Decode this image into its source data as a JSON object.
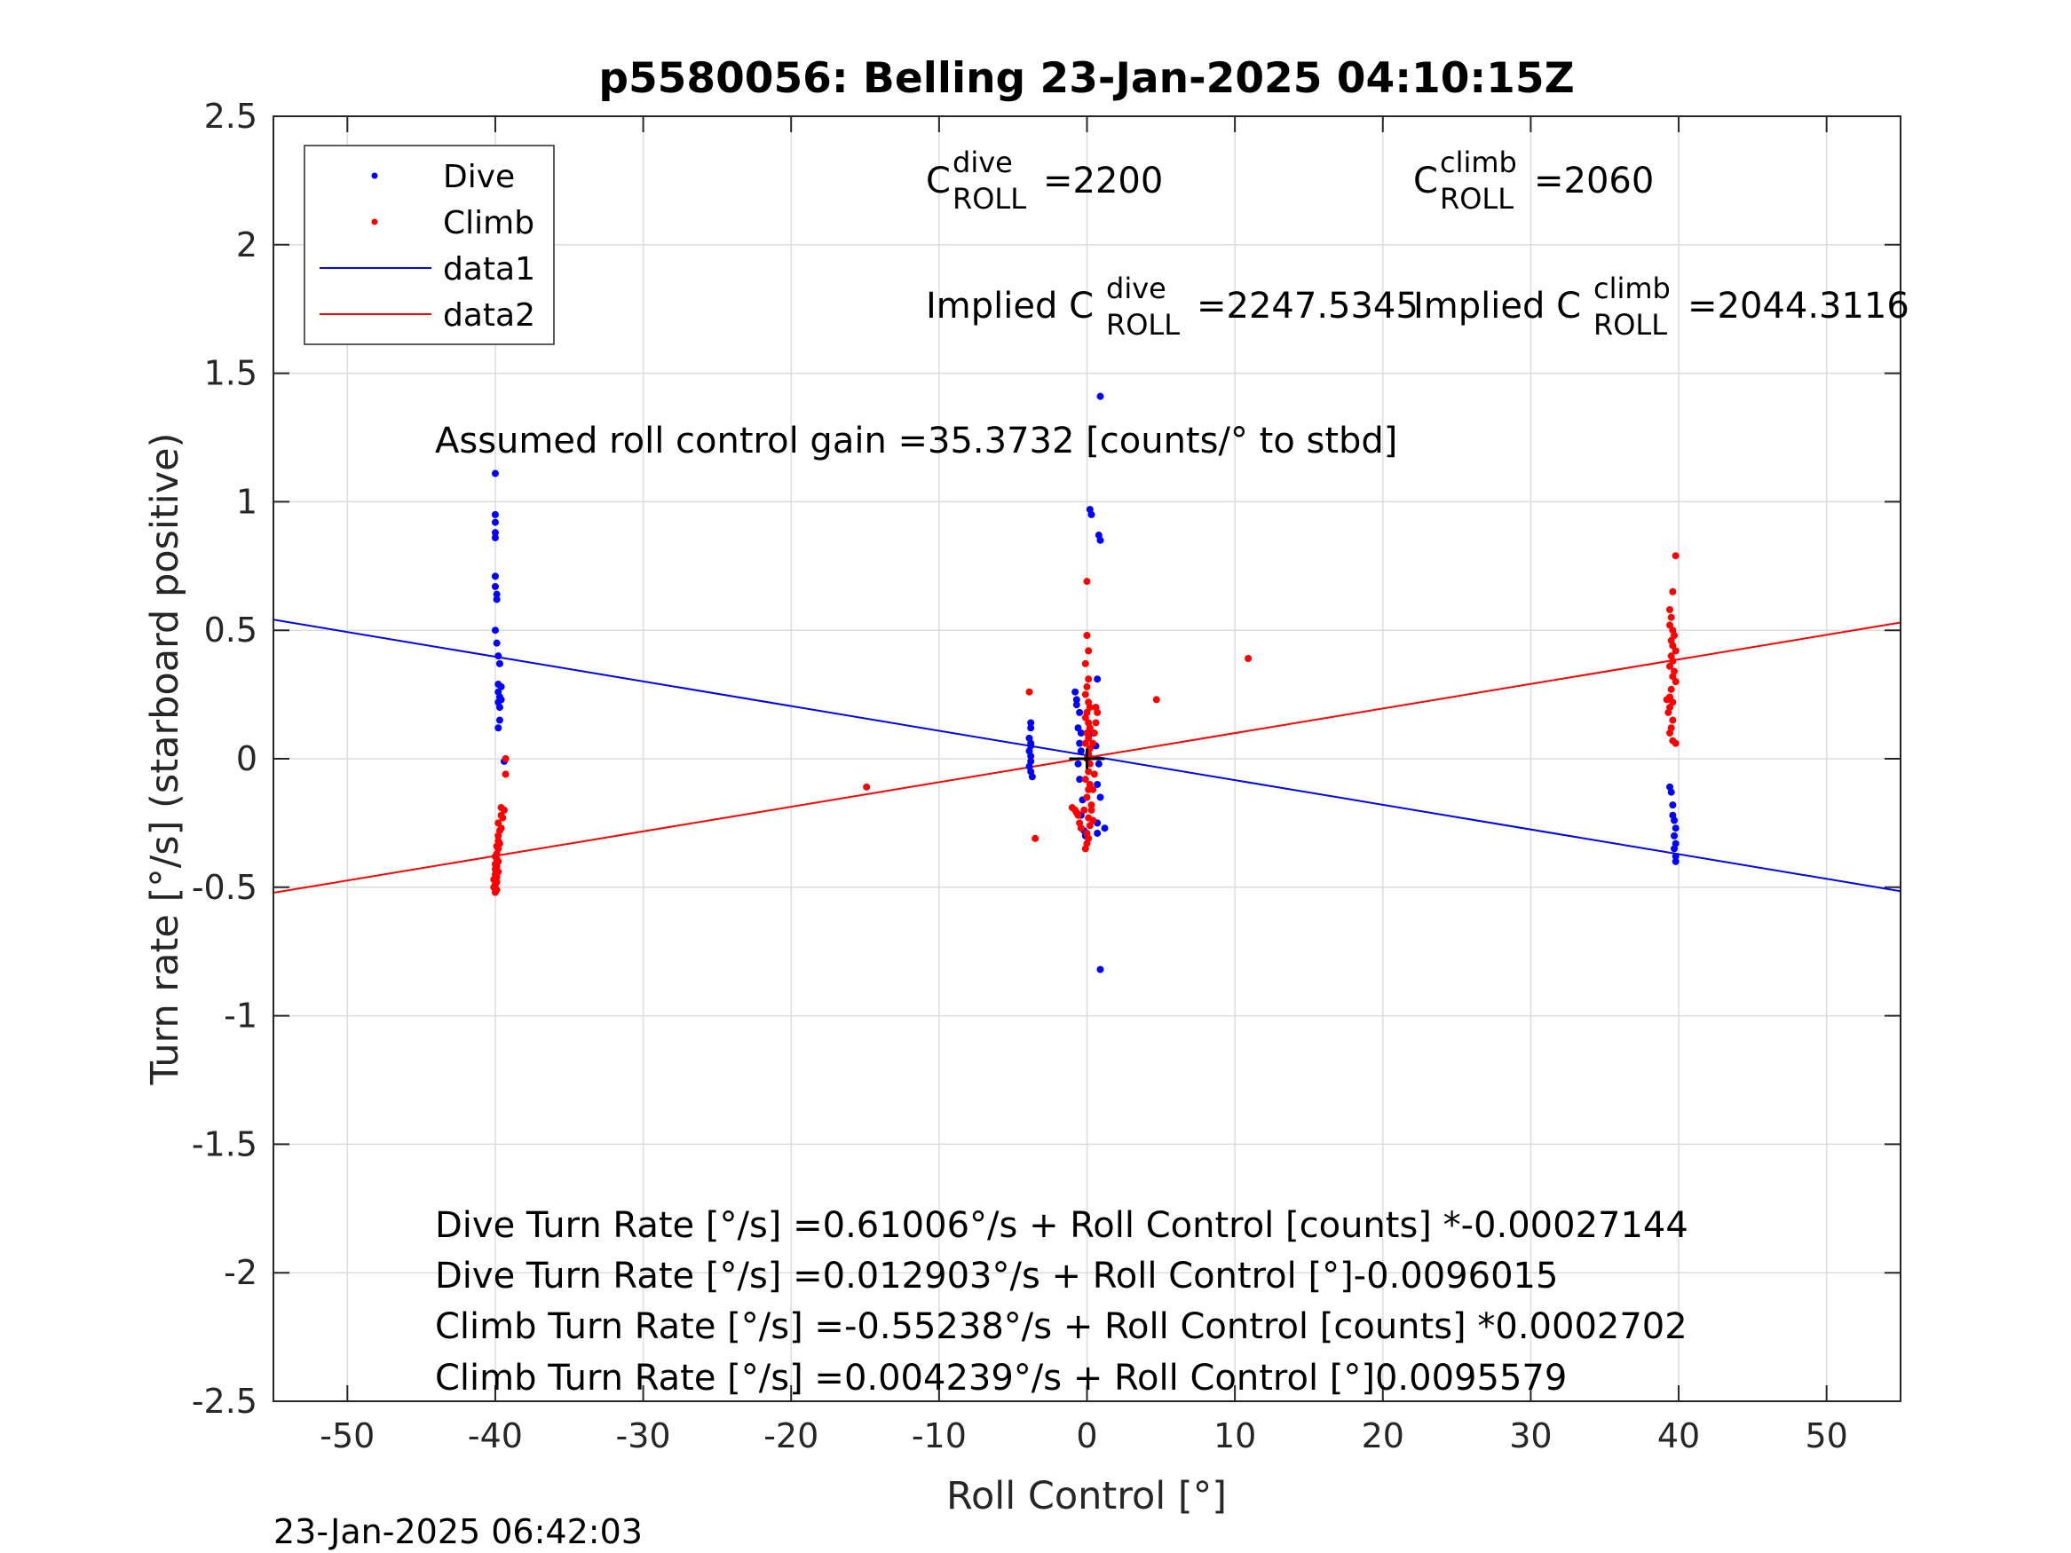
{
  "chart_data": {
    "type": "scatter",
    "title": "p5580056: Belling 23-Jan-2025 04:10:15Z",
    "xlabel": "Roll Control [°]",
    "ylabel": "Turn rate [°/s] (starboard positive)",
    "xlim": [
      -55,
      55
    ],
    "ylim": [
      -2.5,
      2.5
    ],
    "xticks": [
      -50,
      -40,
      -30,
      -20,
      -10,
      0,
      10,
      20,
      30,
      40,
      50
    ],
    "xtick_labels": [
      "-50",
      "-40",
      "-30",
      "-20",
      "-10",
      "0",
      "10",
      "20",
      "30",
      "40",
      "50"
    ],
    "yticks": [
      2.5,
      2,
      1.5,
      1,
      0.5,
      0,
      -0.5,
      -1,
      -1.5,
      -2,
      -2.5
    ],
    "ytick_labels": [
      "2.5",
      "2",
      "1.5",
      "1",
      "0.5",
      "0",
      "-0.5",
      "-1",
      "-1.5",
      "-2",
      "-2.5"
    ],
    "grid": true,
    "legend_position": "top-left",
    "series": [
      {
        "name": "Dive",
        "kind": "points",
        "color": "#0000ff",
        "points": [
          [
            -40,
            1.11
          ],
          [
            -40,
            0.95
          ],
          [
            -40,
            0.92
          ],
          [
            -40,
            0.88
          ],
          [
            -40,
            0.86
          ],
          [
            -40,
            0.71
          ],
          [
            -40,
            0.67
          ],
          [
            -39.9,
            0.64
          ],
          [
            -39.9,
            0.62
          ],
          [
            -40,
            0.5
          ],
          [
            -39.9,
            0.45
          ],
          [
            -39.8,
            0.4
          ],
          [
            -39.7,
            0.37
          ],
          [
            -39.8,
            0.29
          ],
          [
            -39.6,
            0.28
          ],
          [
            -39.8,
            0.26
          ],
          [
            -39.7,
            0.24
          ],
          [
            -39.6,
            0.23
          ],
          [
            -39.8,
            0.22
          ],
          [
            -39.7,
            0.2
          ],
          [
            -39.7,
            0.15
          ],
          [
            -39.8,
            0.12
          ],
          [
            -39.4,
            -0.01
          ],
          [
            -3.8,
            0.14
          ],
          [
            -3.8,
            0.12
          ],
          [
            -3.9,
            0.08
          ],
          [
            -3.8,
            0.06
          ],
          [
            -3.8,
            0.05
          ],
          [
            -3.9,
            0.03
          ],
          [
            -3.8,
            0.01
          ],
          [
            -3.8,
            -0.01
          ],
          [
            -3.9,
            -0.03
          ],
          [
            -3.8,
            -0.05
          ],
          [
            -3.7,
            -0.07
          ],
          [
            -0.8,
            0.26
          ],
          [
            -0.7,
            0.23
          ],
          [
            -0.7,
            0.21
          ],
          [
            -0.5,
            0.18
          ],
          [
            -0.6,
            0.12
          ],
          [
            -0.4,
            0.1
          ],
          [
            -0.5,
            0.06
          ],
          [
            -0.4,
            0.03
          ],
          [
            -0.6,
            -0.02
          ],
          [
            -0.5,
            -0.08
          ],
          [
            -0.3,
            -0.16
          ],
          [
            -0.4,
            -0.22
          ],
          [
            -0.2,
            -0.28
          ],
          [
            -0.1,
            -0.3
          ],
          [
            0.2,
            0.97
          ],
          [
            0.3,
            0.95
          ],
          [
            0.8,
            0.87
          ],
          [
            0.9,
            0.85
          ],
          [
            0.9,
            1.41
          ],
          [
            0.7,
            0.31
          ],
          [
            0.6,
            0.2
          ],
          [
            0.4,
            0.1
          ],
          [
            0.6,
            0.05
          ],
          [
            0.8,
            -0.02
          ],
          [
            0.7,
            -0.1
          ],
          [
            0.9,
            -0.15
          ],
          [
            0.7,
            -0.25
          ],
          [
            1.2,
            -0.27
          ],
          [
            0.7,
            -0.29
          ],
          [
            0.9,
            -0.82
          ],
          [
            39.4,
            -0.11
          ],
          [
            39.5,
            -0.13
          ],
          [
            39.6,
            -0.18
          ],
          [
            39.6,
            -0.22
          ],
          [
            39.7,
            -0.24
          ],
          [
            39.8,
            -0.27
          ],
          [
            39.7,
            -0.3
          ],
          [
            39.8,
            -0.33
          ],
          [
            39.7,
            -0.35
          ],
          [
            39.8,
            -0.38
          ],
          [
            39.8,
            -0.4
          ]
        ]
      },
      {
        "name": "Climb",
        "kind": "points",
        "color": "#ff0000",
        "points": [
          [
            -39.3,
            0.0
          ],
          [
            -39.3,
            -0.06
          ],
          [
            -39.6,
            -0.19
          ],
          [
            -39.4,
            -0.2
          ],
          [
            -39.6,
            -0.22
          ],
          [
            -39.5,
            -0.23
          ],
          [
            -39.8,
            -0.25
          ],
          [
            -39.6,
            -0.27
          ],
          [
            -39.7,
            -0.28
          ],
          [
            -39.8,
            -0.3
          ],
          [
            -39.8,
            -0.32
          ],
          [
            -39.7,
            -0.33
          ],
          [
            -39.9,
            -0.34
          ],
          [
            -39.8,
            -0.35
          ],
          [
            -39.9,
            -0.37
          ],
          [
            -40,
            -0.38
          ],
          [
            -39.9,
            -0.39
          ],
          [
            -39.8,
            -0.4
          ],
          [
            -40,
            -0.41
          ],
          [
            -39.9,
            -0.42
          ],
          [
            -40,
            -0.43
          ],
          [
            -39.8,
            -0.44
          ],
          [
            -40,
            -0.45
          ],
          [
            -39.9,
            -0.46
          ],
          [
            -40.1,
            -0.47
          ],
          [
            -39.9,
            -0.48
          ],
          [
            -40,
            -0.49
          ],
          [
            -40.1,
            -0.5
          ],
          [
            -39.9,
            -0.51
          ],
          [
            -40,
            -0.52
          ],
          [
            -14.9,
            -0.11
          ],
          [
            -3.9,
            0.26
          ],
          [
            -3.5,
            -0.31
          ],
          [
            -1.0,
            -0.19
          ],
          [
            -0.8,
            -0.2
          ],
          [
            -0.7,
            -0.21
          ],
          [
            -0.6,
            -0.22
          ],
          [
            -0.5,
            -0.25
          ],
          [
            -0.4,
            -0.27
          ],
          [
            0.0,
            0.69
          ],
          [
            0.0,
            0.48
          ],
          [
            0.1,
            0.42
          ],
          [
            -0.1,
            0.37
          ],
          [
            0.1,
            0.31
          ],
          [
            0.0,
            0.28
          ],
          [
            -0.1,
            0.25
          ],
          [
            0.1,
            0.22
          ],
          [
            0.2,
            0.2
          ],
          [
            0.0,
            0.18
          ],
          [
            -0.1,
            0.16
          ],
          [
            0.1,
            0.14
          ],
          [
            0.2,
            0.12
          ],
          [
            0.0,
            0.1
          ],
          [
            0.1,
            0.08
          ],
          [
            -0.1,
            0.06
          ],
          [
            0.2,
            0.04
          ],
          [
            0.1,
            0.02
          ],
          [
            0.0,
            0.0
          ],
          [
            0.2,
            -0.02
          ],
          [
            0.1,
            -0.05
          ],
          [
            -0.1,
            -0.08
          ],
          [
            0.2,
            -0.1
          ],
          [
            0.1,
            -0.12
          ],
          [
            0.0,
            -0.15
          ],
          [
            0.3,
            -0.18
          ],
          [
            -0.2,
            -0.2
          ],
          [
            0.1,
            -0.23
          ],
          [
            0.2,
            -0.26
          ],
          [
            0.0,
            -0.29
          ],
          [
            0.1,
            -0.31
          ],
          [
            0.0,
            -0.33
          ],
          [
            -0.1,
            -0.35
          ],
          [
            0.6,
            0.2
          ],
          [
            0.7,
            0.18
          ],
          [
            0.6,
            0.14
          ],
          [
            0.5,
            0.1
          ],
          [
            0.4,
            0.06
          ],
          [
            0.5,
            -0.06
          ],
          [
            0.4,
            -0.12
          ],
          [
            0.3,
            -0.2
          ],
          [
            0.4,
            -0.24
          ],
          [
            4.7,
            0.23
          ],
          [
            10.9,
            0.39
          ],
          [
            39.8,
            0.79
          ],
          [
            39.6,
            0.65
          ],
          [
            39.4,
            0.58
          ],
          [
            39.5,
            0.55
          ],
          [
            39.4,
            0.52
          ],
          [
            39.6,
            0.5
          ],
          [
            39.7,
            0.48
          ],
          [
            39.5,
            0.46
          ],
          [
            39.6,
            0.44
          ],
          [
            39.8,
            0.42
          ],
          [
            39.5,
            0.4
          ],
          [
            39.6,
            0.38
          ],
          [
            39.4,
            0.36
          ],
          [
            39.7,
            0.34
          ],
          [
            39.6,
            0.32
          ],
          [
            39.8,
            0.3
          ],
          [
            39.5,
            0.27
          ],
          [
            39.4,
            0.24
          ],
          [
            39.2,
            0.23
          ],
          [
            39.6,
            0.22
          ],
          [
            39.4,
            0.2
          ],
          [
            39.3,
            0.18
          ],
          [
            39.6,
            0.15
          ],
          [
            39.5,
            0.12
          ],
          [
            39.4,
            0.1
          ],
          [
            39.6,
            0.07
          ],
          [
            39.8,
            0.06
          ]
        ]
      },
      {
        "name": "data1",
        "kind": "line",
        "color": "#0000ff",
        "x": [
          -55,
          55
        ],
        "y": [
          0.5411,
          -0.5153
        ]
      },
      {
        "name": "data2",
        "kind": "line",
        "color": "#ff0000",
        "x": [
          -55,
          55
        ],
        "y": [
          -0.5215,
          0.53
        ]
      }
    ],
    "annotations": {
      "c_dive_base": "C",
      "c_dive_sup": "dive",
      "c_dive_sub": "ROLL",
      "c_dive_value": "=2200",
      "c_climb_base": "C",
      "c_climb_sup": "climb",
      "c_climb_sub": "ROLL",
      "c_climb_value": "=2060",
      "implied_dive_base": "Implied C",
      "implied_dive_sup": "dive",
      "implied_dive_sub": "ROLL",
      "implied_dive_value": "=2247.5345",
      "implied_climb_base": "Implied C",
      "implied_climb_sup": "climb",
      "implied_climb_sub": "ROLL",
      "implied_climb_value": "=2044.3116",
      "gain": "Assumed roll control gain =35.3732 [counts/° to stbd]",
      "fit_lines": [
        "Dive Turn Rate [°/s] =0.61006°/s + Roll Control [counts] *-0.00027144",
        "Dive Turn Rate [°/s] =0.012903°/s + Roll Control [°]-0.0096015",
        "Climb Turn Rate [°/s] =-0.55238°/s + Roll Control [counts] *0.0002702",
        "Climb Turn Rate [°/s] =0.004239°/s + Roll Control [°]0.0095579"
      ]
    },
    "legend": [
      "Dive",
      "Climb",
      "data1",
      "data2"
    ]
  },
  "timestamp": "23-Jan-2025 06:42:03"
}
